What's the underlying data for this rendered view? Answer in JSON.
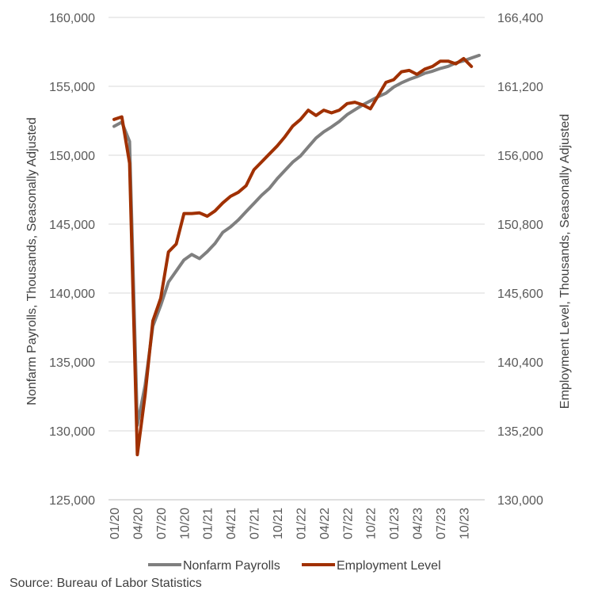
{
  "chart_data": {
    "type": "line",
    "title": "",
    "ylabel_left": "Nonfarm Payrolls, Thousands, Seasonally Adjusted",
    "ylabel_right": "Employment Level, Thousands, Seasonally Adjusted",
    "xlabel": "",
    "ylim_left": [
      125000,
      160000
    ],
    "ylim_right": [
      130000,
      166400
    ],
    "yticks_left": [
      "125,000",
      "130,000",
      "135,000",
      "140,000",
      "145,000",
      "150,000",
      "155,000",
      "160,000"
    ],
    "yticks_right": [
      "130,000",
      "135,200",
      "140,400",
      "145,600",
      "150,800",
      "156,000",
      "161,200",
      "166,400"
    ],
    "x_tick_labels": [
      "01/20",
      "04/20",
      "07/20",
      "10/20",
      "01/21",
      "04/21",
      "07/21",
      "10/21",
      "01/22",
      "04/22",
      "07/22",
      "10/22",
      "01/23",
      "04/23",
      "07/23",
      "10/23"
    ],
    "x_tick_index": [
      0,
      3,
      6,
      9,
      12,
      15,
      18,
      21,
      24,
      27,
      30,
      33,
      36,
      39,
      42,
      45
    ],
    "grid": true,
    "legend_position": "bottom",
    "series": [
      {
        "name": "Nonfarm Payrolls",
        "axis": "left",
        "color": "#7f7f7f",
        "values": [
          152100,
          152400,
          151000,
          130400,
          133300,
          137600,
          139100,
          140800,
          141600,
          142400,
          142800,
          142500,
          143000,
          143600,
          144400,
          144800,
          145300,
          145900,
          146500,
          147100,
          147600,
          148300,
          148900,
          149500,
          149950,
          150600,
          151250,
          151700,
          152050,
          152450,
          152950,
          153300,
          153650,
          153950,
          154250,
          154500,
          154950,
          155250,
          155500,
          155700,
          155950,
          156100,
          156300,
          156450,
          156700,
          156850,
          157050,
          157250
        ]
      },
      {
        "name": "Employment Level",
        "axis": "right",
        "color": "#a03000",
        "values": [
          158700,
          158900,
          155400,
          133400,
          137900,
          143500,
          145200,
          148700,
          149300,
          151600,
          151600,
          151650,
          151400,
          151800,
          152400,
          152900,
          153200,
          153700,
          154900,
          155500,
          156100,
          156700,
          157400,
          158200,
          158700,
          159400,
          159000,
          159400,
          159200,
          159400,
          159900,
          160000,
          159800,
          159500,
          160500,
          161500,
          161700,
          162300,
          162400,
          162100,
          162500,
          162700,
          163100,
          163100,
          162900,
          163300,
          162700
        ]
      }
    ]
  },
  "source": "Source: Bureau of Labor Statistics"
}
